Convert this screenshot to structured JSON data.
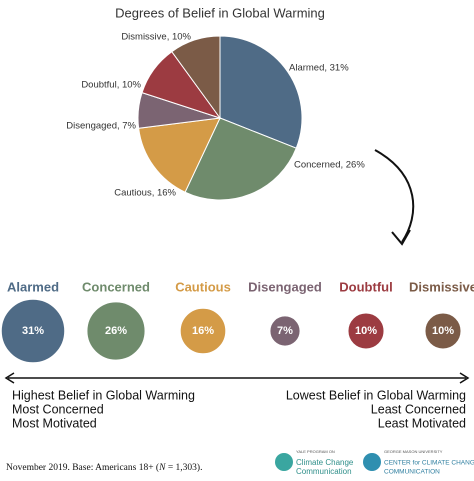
{
  "chart_data": [
    {
      "type": "pie",
      "title": "Degrees of Belief in Global Warming",
      "categories": [
        "Alarmed",
        "Concerned",
        "Cautious",
        "Disengaged",
        "Doubtful",
        "Dismissive"
      ],
      "values": [
        31,
        26,
        16,
        7,
        10,
        10
      ],
      "value_labels": [
        "Alarmed, 31%",
        "Concerned, 26%",
        "Cautious, 16%",
        "Disengaged, 7%",
        "Doubtful, 10%",
        "Dismissive, 10%"
      ],
      "colors": [
        "#4f6b86",
        "#6f8b6c",
        "#d49b47",
        "#7b6472",
        "#9c3b41",
        "#7b5b47"
      ]
    },
    {
      "type": "bubble",
      "categories": [
        "Alarmed",
        "Concerned",
        "Cautious",
        "Disengaged",
        "Doubtful",
        "Dismissive"
      ],
      "values": [
        31,
        26,
        16,
        7,
        10,
        10
      ],
      "value_labels": [
        "31%",
        "26%",
        "16%",
        "7%",
        "10%",
        "10%"
      ],
      "colors": [
        "#4f6b86",
        "#6f8b6c",
        "#d49b47",
        "#7b6472",
        "#9c3b41",
        "#7b5b47"
      ]
    }
  ],
  "scale_text": {
    "left": [
      "Highest Belief in Global Warming",
      "Most Concerned",
      "Most Motivated"
    ],
    "right": [
      "Lowest Belief in Global Warming",
      "Least Concerned",
      "Least Motivated"
    ]
  },
  "footnote": [
    "November 2019. Base: Americans 18+ (",
    "N",
    " = 1,303)."
  ],
  "logos": [
    [
      "YALE PROGRAM ON",
      "Climate Change",
      "Communication"
    ],
    [
      "GEORGE MASON UNIVERSITY",
      "CENTER for CLIMATE CHANGE",
      "COMMUNICATION"
    ]
  ]
}
